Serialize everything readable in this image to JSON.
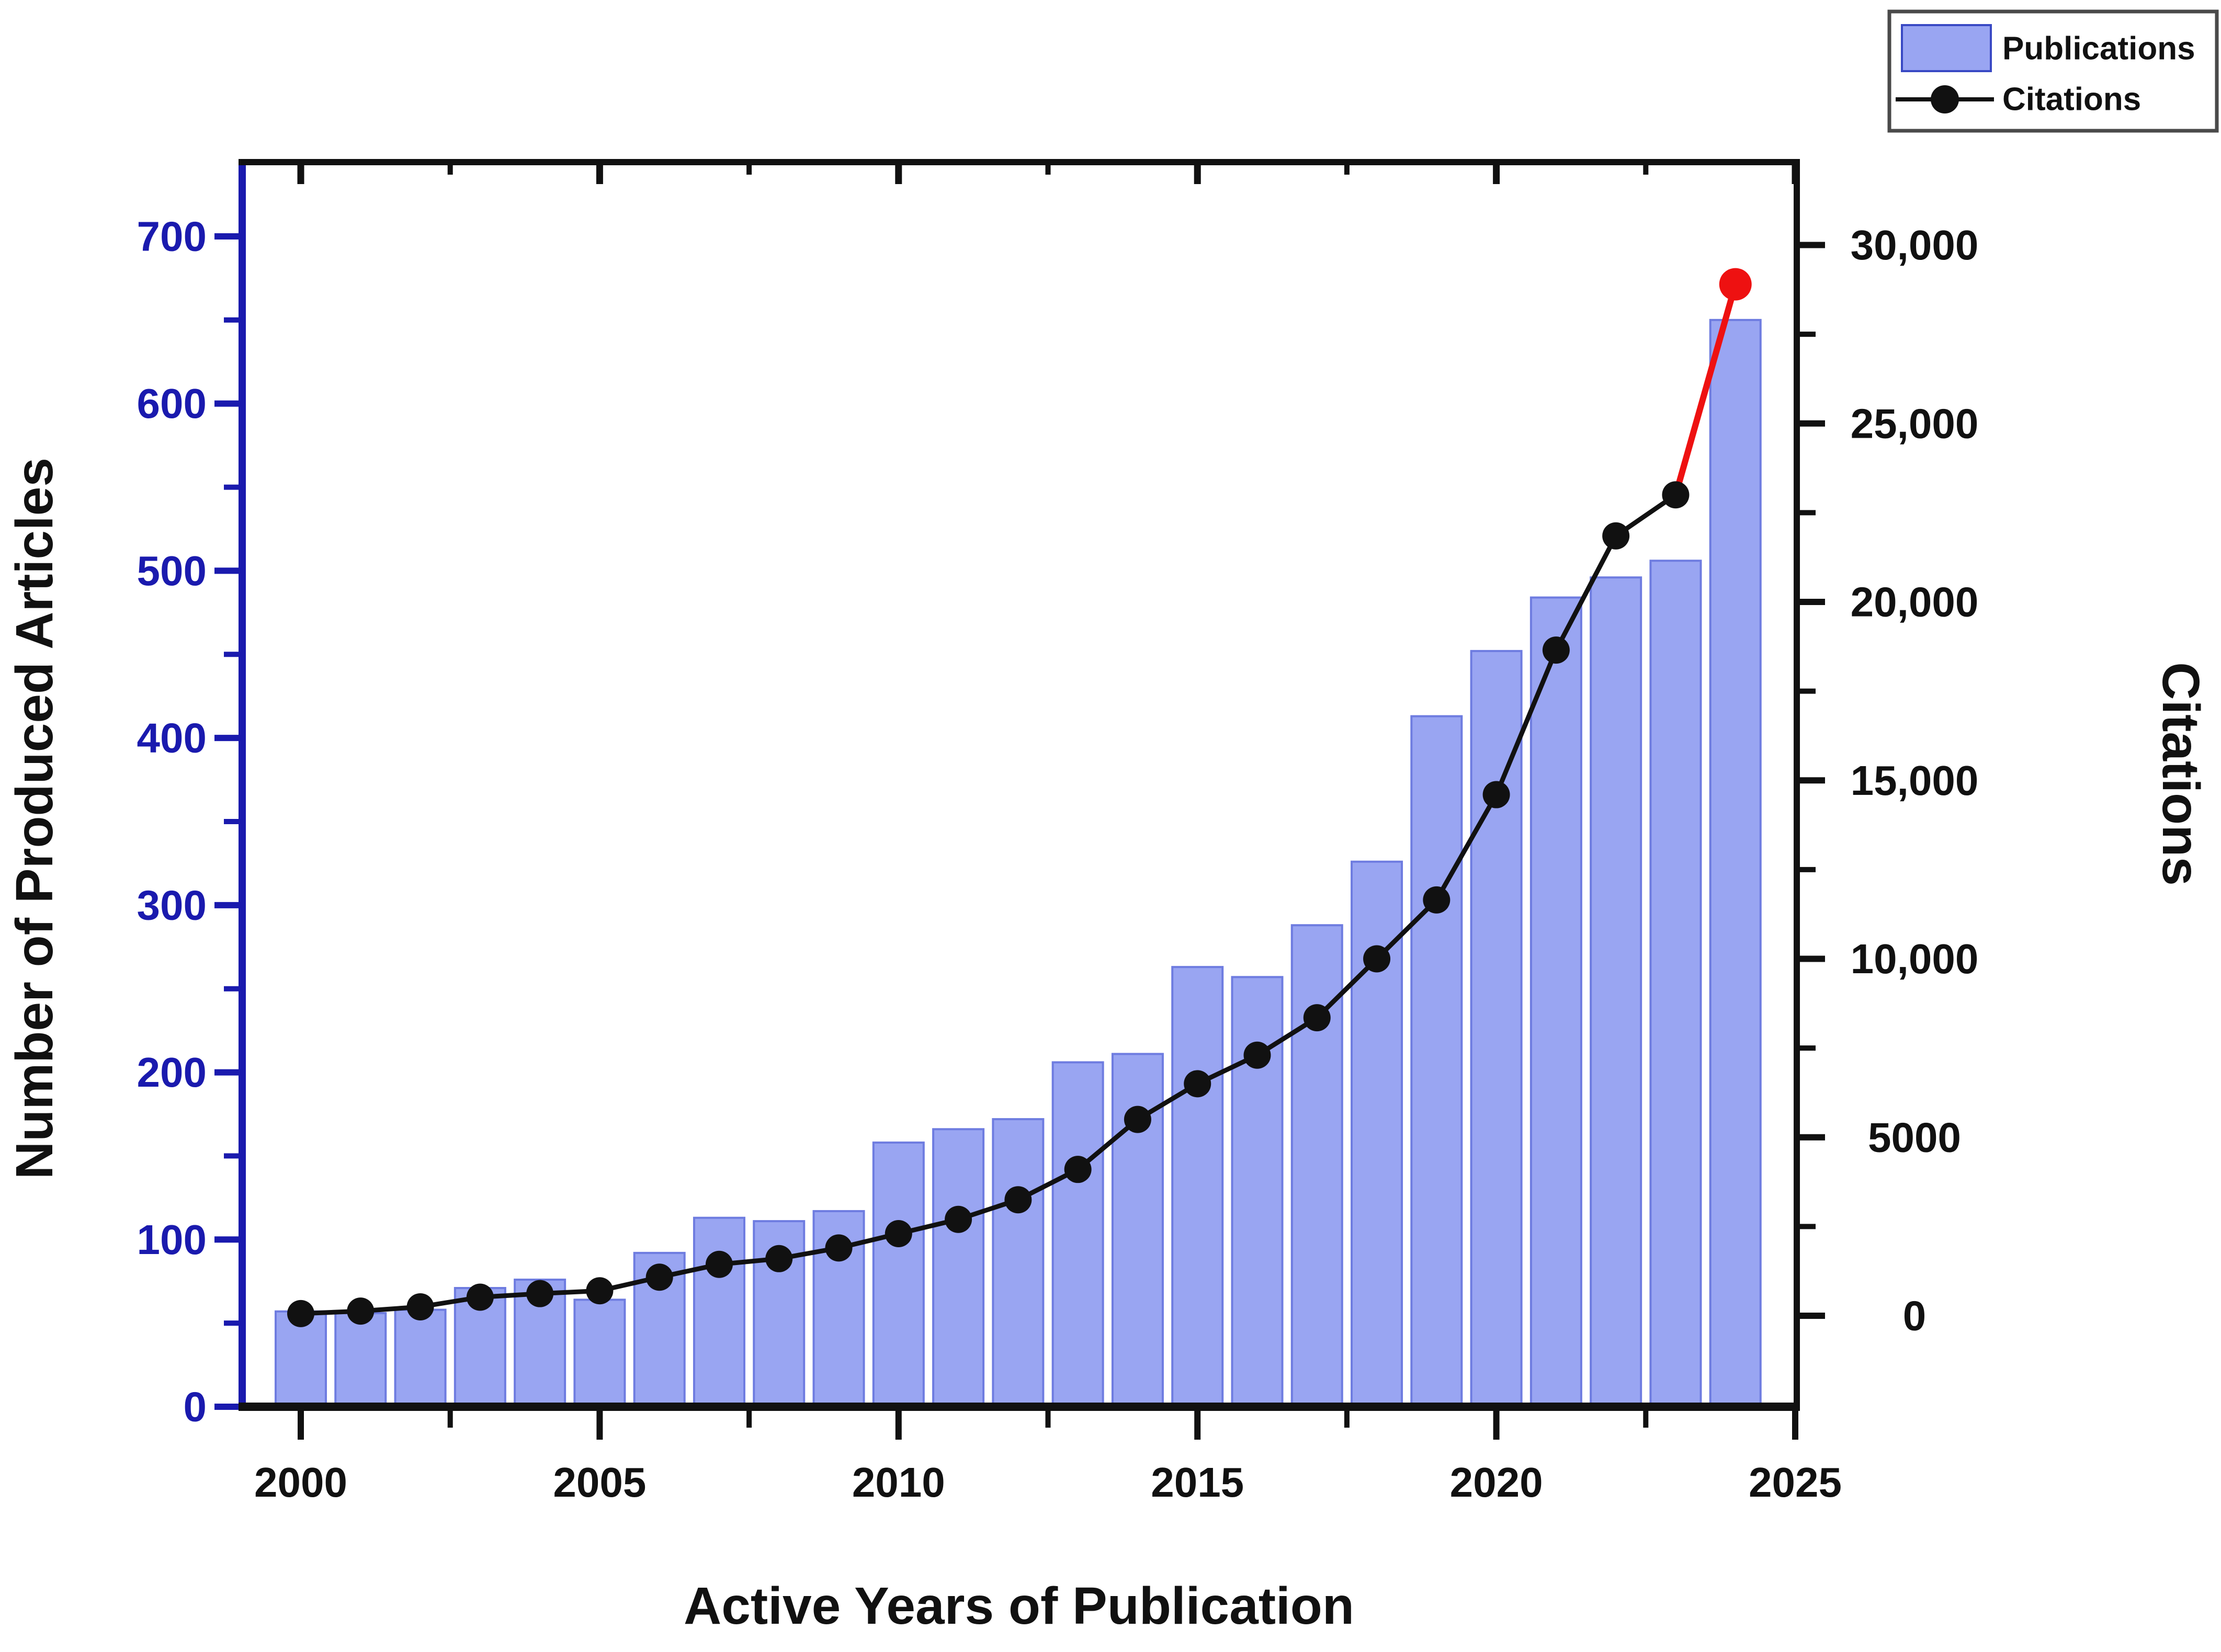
{
  "chart_data": {
    "type": "combo-bar-line",
    "title": "",
    "xlabel": "Active Years of Publication",
    "ylabel_left": "Number of Produced Articles",
    "ylabel_right": "Citations",
    "categories": [
      2000,
      2001,
      2002,
      2003,
      2004,
      2005,
      2006,
      2007,
      2008,
      2009,
      2010,
      2011,
      2012,
      2013,
      2014,
      2015,
      2016,
      2017,
      2018,
      2019,
      2020,
      2021,
      2022,
      2023,
      2024
    ],
    "series": [
      {
        "name": "Publications",
        "type": "bar",
        "axis": "left",
        "values": [
          57,
          56,
          58,
          71,
          76,
          64,
          92,
          113,
          111,
          117,
          158,
          166,
          172,
          206,
          211,
          263,
          257,
          288,
          326,
          413,
          452,
          484,
          496,
          506,
          650
        ]
      },
      {
        "name": "Citations",
        "type": "line",
        "axis": "right",
        "values": [
          60,
          130,
          250,
          520,
          620,
          700,
          1080,
          1440,
          1600,
          1900,
          2300,
          2700,
          3250,
          4100,
          5500,
          6500,
          7300,
          8350,
          10000,
          11650,
          14600,
          18650,
          21850,
          23000,
          28900
        ],
        "last_segment_highlighted": true
      }
    ],
    "x_axis": {
      "range": [
        1999,
        2025.1
      ],
      "major_tick_years": [
        2000,
        2005,
        2010,
        2015,
        2020,
        2025
      ],
      "minor_tick_years": [
        2002.5,
        2007.5,
        2012.5,
        2017.5,
        2022.5
      ],
      "tick_labels": [
        "2000",
        "2005",
        "2010",
        "2015",
        "2020",
        "2025"
      ]
    },
    "left_axis": {
      "min": 0,
      "max": 700,
      "major_step": 100,
      "minor_step": 50,
      "tick_labels": [
        "0",
        "100",
        "200",
        "300",
        "400",
        "500",
        "600",
        "700"
      ]
    },
    "right_axis": {
      "min": 0,
      "max": 30000,
      "major_step": 5000,
      "minor_step": 2500,
      "tick_labels": [
        "0",
        "5000",
        "10,000",
        "15,000",
        "20,000",
        "25,000",
        "30,000"
      ]
    },
    "legend": {
      "position": "top-right",
      "entries": [
        "Publications",
        "Citations"
      ]
    },
    "grid": "off"
  },
  "colors": {
    "bar_fill": "#99a5f2",
    "bar_border": "#6e7ce0",
    "line": "#111111",
    "marker": "#111111",
    "highlight_red": "#ee1111",
    "left_axis_blue": "#1a1aae",
    "axis_black": "#111111",
    "legend_border": "#4a4a4a",
    "legend_swatch_border": "#3949c4",
    "background": "#ffffff"
  }
}
